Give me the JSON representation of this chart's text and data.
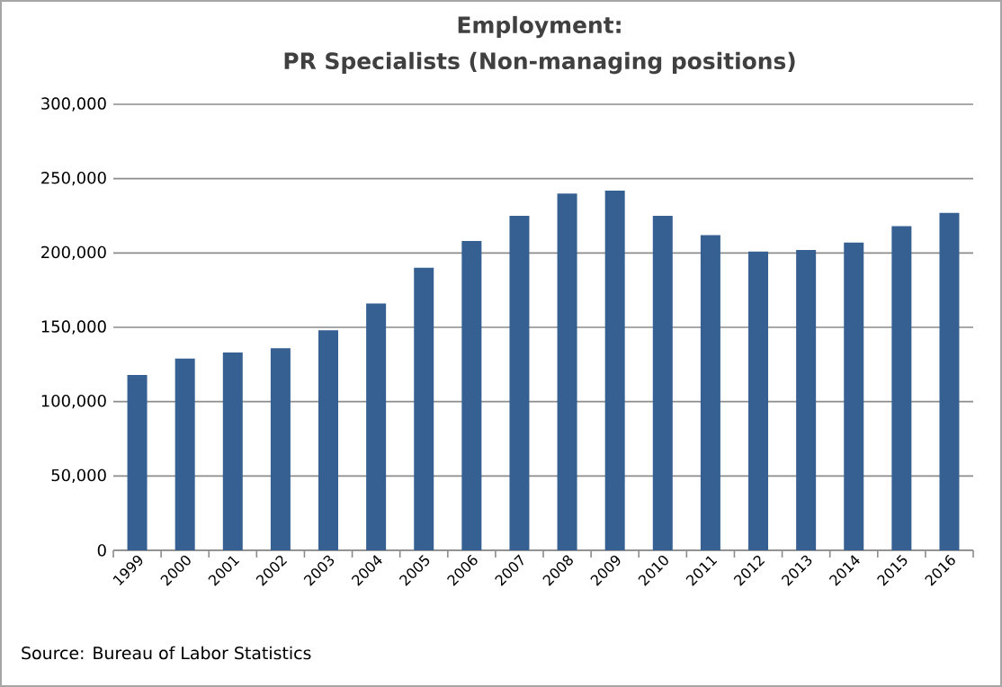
{
  "chart_data": {
    "type": "bar",
    "title": "Employment:",
    "subtitle": "PR Specialists (Non-managing positions)",
    "categories": [
      "1999",
      "2000",
      "2001",
      "2002",
      "2003",
      "2004",
      "2005",
      "2006",
      "2007",
      "2008",
      "2009",
      "2010",
      "2011",
      "2012",
      "2013",
      "2014",
      "2015",
      "2016"
    ],
    "values": [
      118000,
      129000,
      133000,
      136000,
      148000,
      166000,
      190000,
      208000,
      225000,
      240000,
      242000,
      225000,
      212000,
      201000,
      202000,
      207000,
      218000,
      227000
    ],
    "color": "#376092",
    "ylim": [
      0,
      300000
    ],
    "yticks": [
      {
        "value": 0,
        "label": "0"
      },
      {
        "value": 50000,
        "label": "50,000"
      },
      {
        "value": 100000,
        "label": "100,000"
      },
      {
        "value": 150000,
        "label": "150,000"
      },
      {
        "value": 200000,
        "label": "200,000"
      },
      {
        "value": 250000,
        "label": "250,000"
      },
      {
        "value": 300000,
        "label": "300,000"
      }
    ],
    "grid": "y",
    "annotations": [
      "Source: Bureau of Labor Statistics"
    ]
  }
}
